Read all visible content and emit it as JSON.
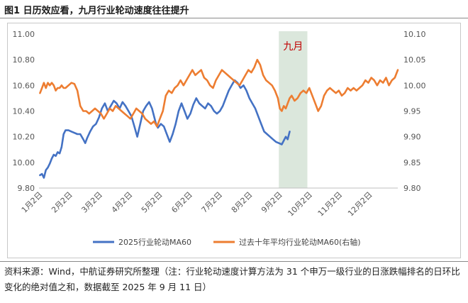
{
  "figure": {
    "title": "图1  日历效应看，九月行业轮动速度往往提升",
    "source": "资料来源：Wind，中航证券研究所整理（注：行业轮动速度计算方法为 31 个申万一级行业的日涨跌幅排名的日环比变化的绝对值之和，数据截至 2025 年 9 月 11 日）"
  },
  "colors": {
    "series_2025": "#4472c4",
    "series_avg": "#ed7d31",
    "band": "#dbe7dc",
    "band_label": "#c00000"
  },
  "chart_data": {
    "type": "line",
    "title": "",
    "y_left": {
      "min": 9.8,
      "max": 11.0,
      "ticks": [
        "9.80",
        "10.00",
        "10.20",
        "10.40",
        "10.60",
        "10.80",
        "11.00"
      ]
    },
    "y_right": {
      "min": 9.8,
      "max": 10.1,
      "ticks": [
        "9.80",
        "9.85",
        "9.90",
        "9.95",
        "10.00",
        "10.05",
        "10.10"
      ]
    },
    "x_ticks": [
      "1月2日",
      "2月2日",
      "3月2日",
      "4月2日",
      "5月2日",
      "6月2日",
      "7月2日",
      "8月2日",
      "9月2日",
      "10月2日",
      "11月2日",
      "12月2日"
    ],
    "x_domain_days": [
      1,
      366
    ],
    "highlight": {
      "label": "九月",
      "start_day": 245,
      "end_day": 274
    },
    "legend": [
      "2025行业轮动MA60",
      "过去十年平均行业轮动MA60(右轴)"
    ],
    "series": [
      {
        "name": "2025行业轮动MA60",
        "axis": "left",
        "points": [
          [
            2,
            9.9
          ],
          [
            4,
            9.91
          ],
          [
            6,
            9.88
          ],
          [
            8,
            9.94
          ],
          [
            10,
            9.96
          ],
          [
            12,
            9.99
          ],
          [
            14,
            10.03
          ],
          [
            16,
            10.06
          ],
          [
            18,
            10.05
          ],
          [
            20,
            10.08
          ],
          [
            22,
            10.07
          ],
          [
            24,
            10.12
          ],
          [
            26,
            10.22
          ],
          [
            28,
            10.25
          ],
          [
            31,
            10.25
          ],
          [
            34,
            10.24
          ],
          [
            37,
            10.23
          ],
          [
            40,
            10.22
          ],
          [
            43,
            10.22
          ],
          [
            46,
            10.18
          ],
          [
            48,
            10.15
          ],
          [
            50,
            10.19
          ],
          [
            53,
            10.24
          ],
          [
            56,
            10.28
          ],
          [
            59,
            10.3
          ],
          [
            62,
            10.35
          ],
          [
            65,
            10.42
          ],
          [
            68,
            10.46
          ],
          [
            71,
            10.4
          ],
          [
            74,
            10.44
          ],
          [
            77,
            10.48
          ],
          [
            80,
            10.46
          ],
          [
            83,
            10.42
          ],
          [
            86,
            10.47
          ],
          [
            89,
            10.44
          ],
          [
            92,
            10.4
          ],
          [
            95,
            10.36
          ],
          [
            98,
            10.28
          ],
          [
            101,
            10.2
          ],
          [
            104,
            10.3
          ],
          [
            107,
            10.4
          ],
          [
            110,
            10.44
          ],
          [
            113,
            10.47
          ],
          [
            116,
            10.42
          ],
          [
            118,
            10.36
          ],
          [
            120,
            10.3
          ],
          [
            122,
            10.27
          ],
          [
            125,
            10.3
          ],
          [
            128,
            10.28
          ],
          [
            131,
            10.22
          ],
          [
            134,
            10.16
          ],
          [
            137,
            10.22
          ],
          [
            140,
            10.3
          ],
          [
            143,
            10.4
          ],
          [
            146,
            10.46
          ],
          [
            149,
            10.4
          ],
          [
            152,
            10.34
          ],
          [
            155,
            10.38
          ],
          [
            158,
            10.45
          ],
          [
            161,
            10.5
          ],
          [
            164,
            10.46
          ],
          [
            167,
            10.44
          ],
          [
            170,
            10.42
          ],
          [
            173,
            10.46
          ],
          [
            176,
            10.44
          ],
          [
            179,
            10.4
          ],
          [
            182,
            10.38
          ],
          [
            185,
            10.4
          ],
          [
            188,
            10.44
          ],
          [
            191,
            10.5
          ],
          [
            194,
            10.56
          ],
          [
            197,
            10.6
          ],
          [
            200,
            10.64
          ],
          [
            203,
            10.62
          ],
          [
            206,
            10.58
          ],
          [
            209,
            10.6
          ],
          [
            212,
            10.56
          ],
          [
            215,
            10.5
          ],
          [
            218,
            10.46
          ],
          [
            221,
            10.42
          ],
          [
            224,
            10.36
          ],
          [
            227,
            10.3
          ],
          [
            230,
            10.24
          ],
          [
            233,
            10.22
          ],
          [
            236,
            10.2
          ],
          [
            239,
            10.18
          ],
          [
            242,
            10.16
          ],
          [
            245,
            10.15
          ],
          [
            248,
            10.14
          ],
          [
            250,
            10.17
          ],
          [
            252,
            10.2
          ],
          [
            254,
            10.18
          ],
          [
            256,
            10.24
          ]
        ]
      },
      {
        "name": "过去十年平均行业轮动MA60(右轴)",
        "axis": "right",
        "points": [
          [
            2,
            9.985
          ],
          [
            4,
            9.995
          ],
          [
            6,
            10.005
          ],
          [
            8,
            9.995
          ],
          [
            10,
            10.005
          ],
          [
            12,
            10.0
          ],
          [
            14,
            10.005
          ],
          [
            16,
            10.0
          ],
          [
            18,
            9.99
          ],
          [
            20,
            9.995
          ],
          [
            22,
            9.995
          ],
          [
            24,
            10.0
          ],
          [
            26,
            9.995
          ],
          [
            28,
            9.995
          ],
          [
            31,
            10.0
          ],
          [
            34,
            10.005
          ],
          [
            37,
            10.003
          ],
          [
            40,
            9.99
          ],
          [
            43,
            9.96
          ],
          [
            46,
            9.95
          ],
          [
            49,
            9.95
          ],
          [
            52,
            9.945
          ],
          [
            55,
            9.95
          ],
          [
            58,
            9.955
          ],
          [
            61,
            9.95
          ],
          [
            64,
            9.945
          ],
          [
            67,
            9.935
          ],
          [
            70,
            9.945
          ],
          [
            73,
            9.955
          ],
          [
            76,
            9.95
          ],
          [
            79,
            9.96
          ],
          [
            82,
            9.955
          ],
          [
            85,
            9.95
          ],
          [
            88,
            9.945
          ],
          [
            91,
            9.94
          ],
          [
            94,
            9.935
          ],
          [
            97,
            9.945
          ],
          [
            100,
            9.955
          ],
          [
            103,
            9.95
          ],
          [
            106,
            9.945
          ],
          [
            109,
            9.935
          ],
          [
            112,
            9.93
          ],
          [
            115,
            9.925
          ],
          [
            118,
            9.93
          ],
          [
            121,
            9.92
          ],
          [
            124,
            9.935
          ],
          [
            127,
            9.95
          ],
          [
            130,
            9.98
          ],
          [
            133,
            9.99
          ],
          [
            136,
            9.985
          ],
          [
            139,
            9.995
          ],
          [
            142,
            10.0
          ],
          [
            145,
            10.01
          ],
          [
            148,
            10.0
          ],
          [
            151,
            10.01
          ],
          [
            154,
            10.02
          ],
          [
            157,
            10.03
          ],
          [
            160,
            10.02
          ],
          [
            163,
            10.025
          ],
          [
            166,
            10.03
          ],
          [
            169,
            10.015
          ],
          [
            172,
            10.01
          ],
          [
            175,
            10.0
          ],
          [
            178,
            9.995
          ],
          [
            181,
            10.01
          ],
          [
            184,
            10.02
          ],
          [
            187,
            10.03
          ],
          [
            190,
            10.025
          ],
          [
            193,
            10.02
          ],
          [
            196,
            10.015
          ],
          [
            199,
            10.01
          ],
          [
            202,
            10.005
          ],
          [
            205,
            10.0
          ],
          [
            208,
            10.01
          ],
          [
            211,
            10.02
          ],
          [
            214,
            10.03
          ],
          [
            217,
            10.025
          ],
          [
            220,
            10.035
          ],
          [
            223,
            10.05
          ],
          [
            226,
            10.04
          ],
          [
            229,
            10.02
          ],
          [
            232,
            10.01
          ],
          [
            235,
            10.005
          ],
          [
            238,
            10.0
          ],
          [
            241,
            9.99
          ],
          [
            244,
            9.975
          ],
          [
            246,
            9.955
          ],
          [
            248,
            9.95
          ],
          [
            250,
            9.96
          ],
          [
            252,
            9.955
          ],
          [
            254,
            9.965
          ],
          [
            256,
            9.975
          ],
          [
            258,
            9.98
          ],
          [
            261,
            9.97
          ],
          [
            264,
            9.975
          ],
          [
            267,
            9.985
          ],
          [
            270,
            9.99
          ],
          [
            273,
            9.985
          ],
          [
            276,
            9.995
          ],
          [
            279,
            9.98
          ],
          [
            282,
            9.965
          ],
          [
            285,
            9.95
          ],
          [
            288,
            9.96
          ],
          [
            291,
            9.98
          ],
          [
            294,
            9.99
          ],
          [
            297,
            9.995
          ],
          [
            300,
            9.99
          ],
          [
            303,
            9.985
          ],
          [
            306,
            9.99
          ],
          [
            309,
            9.98
          ],
          [
            312,
            9.985
          ],
          [
            315,
            9.995
          ],
          [
            318,
            9.99
          ],
          [
            321,
            9.995
          ],
          [
            324,
            9.99
          ],
          [
            327,
            9.995
          ],
          [
            330,
            10.0
          ],
          [
            333,
            10.01
          ],
          [
            336,
            10.005
          ],
          [
            339,
            10.015
          ],
          [
            342,
            10.01
          ],
          [
            345,
            10.0
          ],
          [
            348,
            10.01
          ],
          [
            351,
            10.005
          ],
          [
            354,
            10.015
          ],
          [
            357,
            10.0
          ],
          [
            360,
            10.01
          ],
          [
            363,
            10.015
          ],
          [
            366,
            10.03
          ]
        ]
      }
    ]
  }
}
